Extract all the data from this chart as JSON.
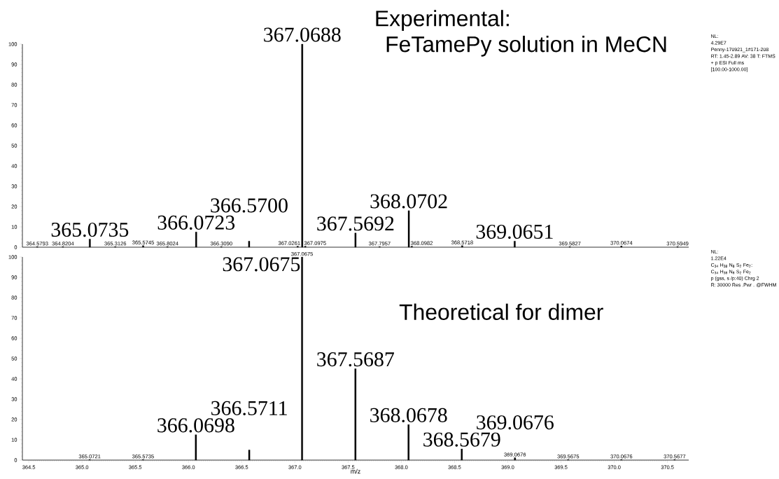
{
  "chart_data": [
    {
      "type": "bar",
      "title": "Experimental:",
      "subtitle": "FeTamePy solution in MeCN",
      "series": [
        {
          "color": "#000000",
          "x": [
            364.5793,
            364.8204,
            365.0735,
            365.3126,
            365.5745,
            365.8024,
            366.0723,
            366.309,
            366.57,
            367.0261,
            367.0688,
            367.0975,
            367.5692,
            367.7957,
            368.0702,
            368.0982,
            368.5718,
            369.0651,
            369.5827,
            370.0674,
            370.5949
          ],
          "values": [
            0.3,
            0.3,
            4,
            0.3,
            0.8,
            0.3,
            7.5,
            0.3,
            3,
            0.5,
            100,
            0.5,
            7,
            0.3,
            18,
            0.5,
            0.8,
            3,
            0.3,
            0.6,
            0.3
          ]
        }
      ],
      "annotations": [
        "NL:",
        "4.29E7",
        "Penny-170921_1#171-208",
        "RT: 1.45-2.89  AV: 38 T: FTMS",
        "+ p ESI Full ms",
        "[100.00-1000.00]",
        {
          "text": "364.5793",
          "x": 364.5793
        },
        {
          "text": "364.8204",
          "x": 364.8204
        },
        {
          "text": "365.0735",
          "x": 365.0735,
          "y": 4
        },
        {
          "text": "365.3126",
          "x": 365.3126
        },
        {
          "text": "365.5745",
          "x": 365.5745
        },
        {
          "text": "365.8024",
          "x": 365.8024
        },
        {
          "text": "366.0723",
          "x": 366.0723,
          "y": 7.5
        },
        {
          "text": "366.3090",
          "x": 366.309
        },
        {
          "text": "366.5700",
          "x": 366.57,
          "y": 3
        },
        {
          "text": "367.0261",
          "x": 367.0261
        },
        {
          "text": "367.0688",
          "x": 367.0688,
          "y": 100
        },
        {
          "text": "367.0975",
          "x": 367.0975
        },
        {
          "text": "367.5692",
          "x": 367.5692,
          "y": 7
        },
        {
          "text": "367.7957",
          "x": 367.7957
        },
        {
          "text": "368.0702",
          "x": 368.0702,
          "y": 18
        },
        {
          "text": "368.0982",
          "x": 368.0982
        },
        {
          "text": "368.5718",
          "x": 368.5718
        },
        {
          "text": "369.0651",
          "x": 369.0651,
          "y": 3
        },
        {
          "text": "369.5827",
          "x": 369.5827
        },
        {
          "text": "370.0674",
          "x": 370.0674
        },
        {
          "text": "370.5949",
          "x": 370.5949
        }
      ],
      "xlim": [
        364.44,
        370.7
      ],
      "ylim": [
        0,
        100
      ],
      "yticks": [
        0,
        10,
        20,
        30,
        40,
        50,
        60,
        70,
        80,
        90,
        100
      ],
      "tick_labels": "y"
    },
    {
      "type": "bar",
      "title": "Theoretical for dimer",
      "xlabel": "m/z",
      "series": [
        {
          "color": "#000000",
          "x": [
            365.0721,
            365.5735,
            366.0698,
            366.5711,
            367.0675,
            367.5687,
            368.0678,
            368.5679,
            369.0676,
            369.5675,
            370.0676,
            370.5677
          ],
          "values": [
            0.3,
            0.3,
            12.5,
            5,
            100,
            45,
            17.5,
            5.5,
            1.2,
            0.3,
            0.3,
            0.3
          ]
        }
      ],
      "annotations": [
        "NL:",
        "1.22E4",
        "C$_{34}$ H$_{38}$ N$_{8}$ S$_{2}$ Fe$_{2}$:",
        "C$_{34}$ H$_{38}$ N$_{8}$ S$_{2}$ Fe$_{2}$",
        "p (gss, s /p:40) Chrg 2",
        "R: 30000 Res .Pwr . @FWHM",
        {
          "text": "365.0721",
          "x": 365.0721
        },
        {
          "text": "365.5735",
          "x": 365.5735
        },
        {
          "text": "366.0698",
          "x": 366.0698,
          "y": 12.5
        },
        {
          "text": "366.5711",
          "x": 366.5711,
          "y": 5
        },
        {
          "text": "367.0675",
          "x": 367.0675
        },
        {
          "text": "367.0675",
          "x": 367.0675,
          "y": 100
        },
        {
          "text": "367.5687",
          "x": 367.5687,
          "y": 45
        },
        {
          "text": "368.0678",
          "x": 368.0678,
          "y": 17.5
        },
        {
          "text": "368.5679",
          "x": 368.5679,
          "y": 5.5
        },
        {
          "text": "369.0676",
          "x": 369.0676
        },
        {
          "text": "369.0676",
          "x": 369.0676,
          "y": 1.2
        },
        {
          "text": "369.5675",
          "x": 369.5675
        },
        {
          "text": "370.0676",
          "x": 370.0676
        },
        {
          "text": "370.5677",
          "x": 370.5677
        }
      ],
      "xlim": [
        364.44,
        370.7
      ],
      "ylim": [
        0,
        100
      ],
      "xticks": [
        364.5,
        {
          "value": 365,
          "label": "365.0"
        },
        365.5,
        {
          "value": 366,
          "label": "366.0"
        },
        366.5,
        {
          "value": 367,
          "label": "367.0"
        },
        367.5,
        {
          "value": 368,
          "label": "368.0"
        },
        368.5,
        {
          "value": 369,
          "label": "369.0"
        },
        369.5,
        {
          "value": 370,
          "label": "370.0"
        },
        370.5
      ],
      "yticks": [
        0,
        10,
        20,
        30,
        40,
        50,
        60,
        70,
        80,
        90,
        100
      ]
    }
  ]
}
